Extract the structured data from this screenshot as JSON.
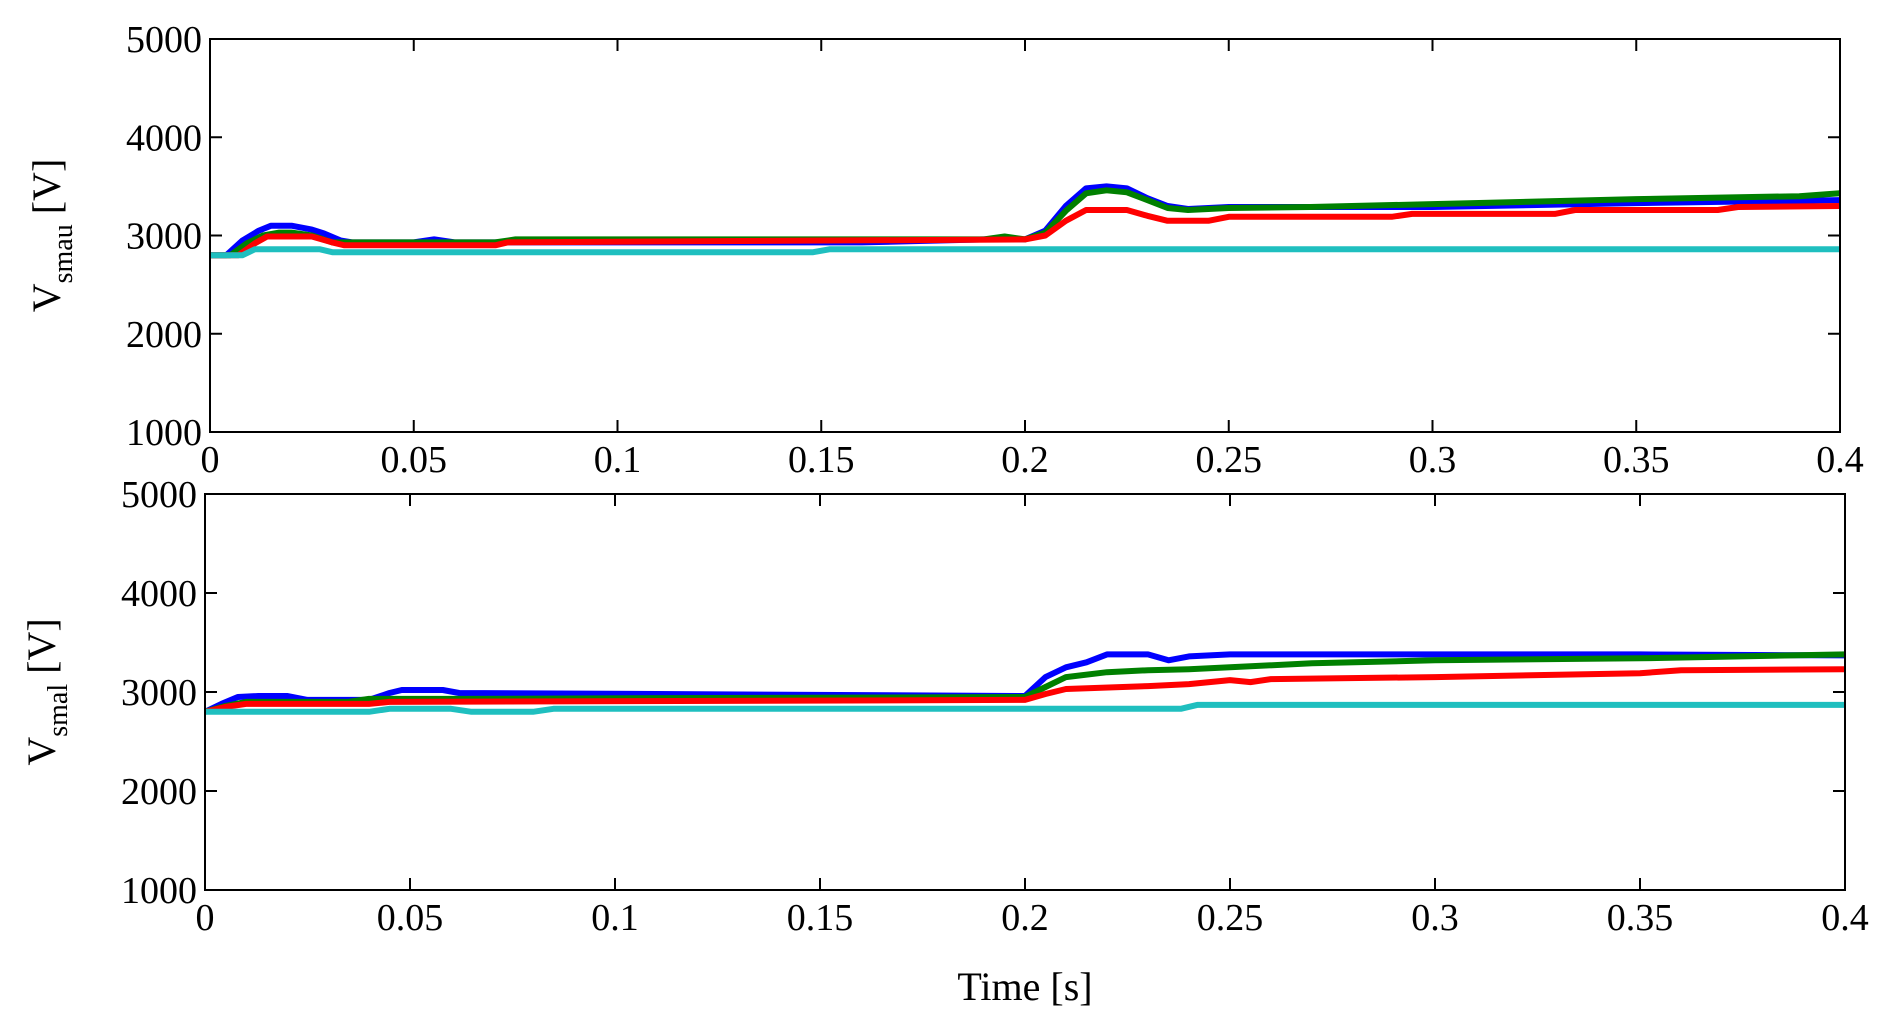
{
  "chart_data": [
    {
      "type": "line",
      "id": "upper",
      "ylabel_main": "V",
      "ylabel_sub": "smau",
      "ylabel_unit": "[V]",
      "xlabel": "",
      "xlim": [
        0,
        0.4
      ],
      "ylim": [
        1000,
        5000
      ],
      "xticks": [
        0,
        0.05,
        0.1,
        0.15,
        0.2,
        0.25,
        0.3,
        0.35,
        0.4
      ],
      "xtick_labels": [
        "0",
        "0.05",
        "0.1",
        "0.15",
        "0.2",
        "0.25",
        "0.3",
        "0.35",
        "0.4"
      ],
      "yticks": [
        1000,
        2000,
        3000,
        4000,
        5000
      ],
      "ytick_labels": [
        "1000",
        "2000",
        "3000",
        "4000",
        "5000"
      ],
      "series": [
        {
          "name": "blue",
          "color": "#0000ff",
          "points": [
            [
              0,
              2800
            ],
            [
              0.004,
              2800
            ],
            [
              0.008,
              2950
            ],
            [
              0.012,
              3050
            ],
            [
              0.015,
              3100
            ],
            [
              0.02,
              3100
            ],
            [
              0.025,
              3060
            ],
            [
              0.028,
              3020
            ],
            [
              0.032,
              2950
            ],
            [
              0.035,
              2930
            ],
            [
              0.05,
              2930
            ],
            [
              0.055,
              2960
            ],
            [
              0.06,
              2930
            ],
            [
              0.15,
              2930
            ],
            [
              0.16,
              2930
            ],
            [
              0.19,
              2960
            ],
            [
              0.2,
              2960
            ],
            [
              0.205,
              3050
            ],
            [
              0.21,
              3300
            ],
            [
              0.215,
              3480
            ],
            [
              0.22,
              3500
            ],
            [
              0.225,
              3480
            ],
            [
              0.23,
              3380
            ],
            [
              0.235,
              3300
            ],
            [
              0.24,
              3270
            ],
            [
              0.25,
              3290
            ],
            [
              0.3,
              3290
            ],
            [
              0.35,
              3330
            ],
            [
              0.4,
              3360
            ]
          ]
        },
        {
          "name": "green",
          "color": "#008000",
          "points": [
            [
              0,
              2800
            ],
            [
              0.005,
              2800
            ],
            [
              0.009,
              2920
            ],
            [
              0.013,
              3000
            ],
            [
              0.017,
              3030
            ],
            [
              0.02,
              3030
            ],
            [
              0.025,
              3000
            ],
            [
              0.03,
              2930
            ],
            [
              0.07,
              2930
            ],
            [
              0.075,
              2960
            ],
            [
              0.15,
              2960
            ],
            [
              0.19,
              2960
            ],
            [
              0.195,
              2990
            ],
            [
              0.2,
              2960
            ],
            [
              0.205,
              3030
            ],
            [
              0.21,
              3250
            ],
            [
              0.215,
              3430
            ],
            [
              0.22,
              3460
            ],
            [
              0.225,
              3440
            ],
            [
              0.23,
              3360
            ],
            [
              0.235,
              3280
            ],
            [
              0.24,
              3260
            ],
            [
              0.25,
              3280
            ],
            [
              0.27,
              3290
            ],
            [
              0.3,
              3320
            ],
            [
              0.35,
              3370
            ],
            [
              0.39,
              3400
            ],
            [
              0.4,
              3430
            ]
          ]
        },
        {
          "name": "red",
          "color": "#ff0000",
          "points": [
            [
              0,
              2800
            ],
            [
              0.007,
              2800
            ],
            [
              0.011,
              2920
            ],
            [
              0.014,
              2990
            ],
            [
              0.025,
              2990
            ],
            [
              0.03,
              2930
            ],
            [
              0.033,
              2900
            ],
            [
              0.07,
              2900
            ],
            [
              0.073,
              2930
            ],
            [
              0.2,
              2960
            ],
            [
              0.205,
              3000
            ],
            [
              0.21,
              3150
            ],
            [
              0.215,
              3260
            ],
            [
              0.225,
              3260
            ],
            [
              0.23,
              3200
            ],
            [
              0.235,
              3150
            ],
            [
              0.245,
              3150
            ],
            [
              0.25,
              3190
            ],
            [
              0.29,
              3190
            ],
            [
              0.295,
              3220
            ],
            [
              0.33,
              3220
            ],
            [
              0.335,
              3260
            ],
            [
              0.37,
              3260
            ],
            [
              0.375,
              3290
            ],
            [
              0.4,
              3300
            ]
          ]
        },
        {
          "name": "cyan",
          "color": "#1fbfbf",
          "points": [
            [
              0,
              2800
            ],
            [
              0.008,
              2800
            ],
            [
              0.011,
              2860
            ],
            [
              0.027,
              2860
            ],
            [
              0.03,
              2830
            ],
            [
              0.148,
              2830
            ],
            [
              0.152,
              2860
            ],
            [
              0.4,
              2860
            ]
          ]
        }
      ]
    },
    {
      "type": "line",
      "id": "lower",
      "ylabel_main": "V",
      "ylabel_sub": "smal",
      "ylabel_unit": "[V]",
      "xlabel": "Time [s]",
      "xlim": [
        0,
        0.4
      ],
      "ylim": [
        1000,
        5000
      ],
      "xticks": [
        0,
        0.05,
        0.1,
        0.15,
        0.2,
        0.25,
        0.3,
        0.35,
        0.4
      ],
      "xtick_labels": [
        "0",
        "0.05",
        "0.1",
        "0.15",
        "0.2",
        "0.25",
        "0.3",
        "0.35",
        "0.4"
      ],
      "yticks": [
        1000,
        2000,
        3000,
        4000,
        5000
      ],
      "ytick_labels": [
        "1000",
        "2000",
        "3000",
        "4000",
        "5000"
      ],
      "series": [
        {
          "name": "blue",
          "color": "#0000ff",
          "points": [
            [
              0,
              2800
            ],
            [
              0.004,
              2880
            ],
            [
              0.008,
              2950
            ],
            [
              0.013,
              2960
            ],
            [
              0.02,
              2960
            ],
            [
              0.025,
              2920
            ],
            [
              0.04,
              2920
            ],
            [
              0.045,
              2990
            ],
            [
              0.048,
              3020
            ],
            [
              0.058,
              3020
            ],
            [
              0.062,
              2990
            ],
            [
              0.2,
              2960
            ],
            [
              0.205,
              3150
            ],
            [
              0.21,
              3250
            ],
            [
              0.215,
              3300
            ],
            [
              0.22,
              3380
            ],
            [
              0.23,
              3380
            ],
            [
              0.235,
              3320
            ],
            [
              0.24,
              3360
            ],
            [
              0.25,
              3380
            ],
            [
              0.3,
              3380
            ],
            [
              0.35,
              3380
            ],
            [
              0.4,
              3370
            ]
          ]
        },
        {
          "name": "green",
          "color": "#008000",
          "points": [
            [
              0,
              2800
            ],
            [
              0.005,
              2860
            ],
            [
              0.01,
              2900
            ],
            [
              0.035,
              2900
            ],
            [
              0.04,
              2930
            ],
            [
              0.06,
              2930
            ],
            [
              0.2,
              2950
            ],
            [
              0.205,
              3050
            ],
            [
              0.21,
              3150
            ],
            [
              0.22,
              3200
            ],
            [
              0.23,
              3220
            ],
            [
              0.24,
              3230
            ],
            [
              0.25,
              3250
            ],
            [
              0.27,
              3290
            ],
            [
              0.3,
              3320
            ],
            [
              0.35,
              3340
            ],
            [
              0.4,
              3380
            ]
          ]
        },
        {
          "name": "red",
          "color": "#ff0000",
          "points": [
            [
              0,
              2800
            ],
            [
              0.005,
              2850
            ],
            [
              0.01,
              2880
            ],
            [
              0.04,
              2880
            ],
            [
              0.045,
              2900
            ],
            [
              0.2,
              2920
            ],
            [
              0.205,
              2980
            ],
            [
              0.21,
              3030
            ],
            [
              0.23,
              3060
            ],
            [
              0.24,
              3080
            ],
            [
              0.25,
              3120
            ],
            [
              0.255,
              3100
            ],
            [
              0.26,
              3130
            ],
            [
              0.3,
              3150
            ],
            [
              0.35,
              3190
            ],
            [
              0.36,
              3220
            ],
            [
              0.4,
              3230
            ]
          ]
        },
        {
          "name": "cyan",
          "color": "#1fbfbf",
          "points": [
            [
              0,
              2800
            ],
            [
              0.04,
              2800
            ],
            [
              0.045,
              2830
            ],
            [
              0.06,
              2830
            ],
            [
              0.065,
              2800
            ],
            [
              0.08,
              2800
            ],
            [
              0.085,
              2830
            ],
            [
              0.238,
              2830
            ],
            [
              0.242,
              2870
            ],
            [
              0.4,
              2870
            ]
          ]
        }
      ]
    }
  ]
}
